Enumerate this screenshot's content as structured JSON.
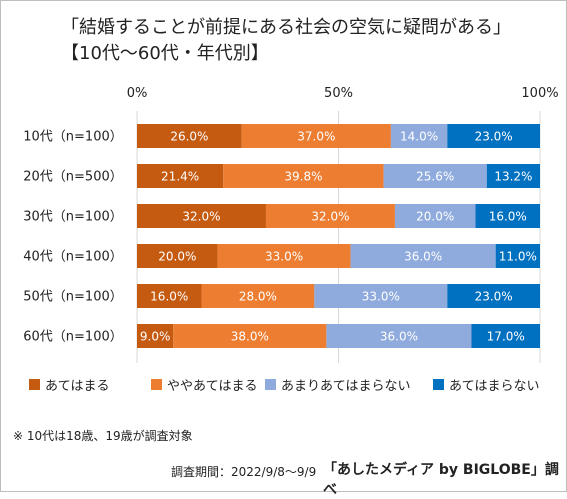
{
  "title_line1": "「結婚することが前提にある社会の空気に疑問がある」",
  "title_line2": "【10代～60代・年代別】",
  "note": "※ 10代は18歳、19歳が調査対象",
  "period": "調査期間：2022/9/8～9/9",
  "source": "「あしたメディア by BIGLOBE」調べ",
  "chart_data": {
    "type": "bar",
    "orientation": "horizontal",
    "stacked": true,
    "categories": [
      "10代（n=100）",
      "20代（n=500）",
      "30代（n=100）",
      "40代（n=100）",
      "50代（n=100）",
      "60代（n=100）"
    ],
    "series": [
      {
        "name": "あてはまる",
        "color": "#c55a11",
        "values": [
          26.0,
          21.4,
          32.0,
          20.0,
          16.0,
          9.0
        ]
      },
      {
        "name": "ややあてはまる",
        "color": "#ed7d31",
        "values": [
          37.0,
          39.8,
          32.0,
          33.0,
          28.0,
          38.0
        ]
      },
      {
        "name": "あまりあてはまらない",
        "color": "#8faadc",
        "values": [
          14.0,
          25.6,
          20.0,
          36.0,
          33.0,
          36.0
        ]
      },
      {
        "name": "あてはまらない",
        "color": "#0070c0",
        "values": [
          23.0,
          13.2,
          16.0,
          11.0,
          23.0,
          17.0
        ]
      }
    ],
    "value_labels": [
      [
        "26.0%",
        "37.0%",
        "14.0%",
        "23.0%"
      ],
      [
        "21.4%",
        "39.8%",
        "25.6%",
        "13.2%"
      ],
      [
        "32.0%",
        "32.0%",
        "20.0%",
        "16.0%"
      ],
      [
        "20.0%",
        "33.0%",
        "36.0%",
        "11.0%"
      ],
      [
        "16.0%",
        "28.0%",
        "33.0%",
        "23.0%"
      ],
      [
        "9.0%",
        "38.0%",
        "36.0%",
        "17.0%"
      ]
    ],
    "x_ticks": [
      "0%",
      "50%",
      "100%"
    ],
    "xlim": [
      0,
      100
    ],
    "grid": true,
    "legend_position": "bottom"
  }
}
